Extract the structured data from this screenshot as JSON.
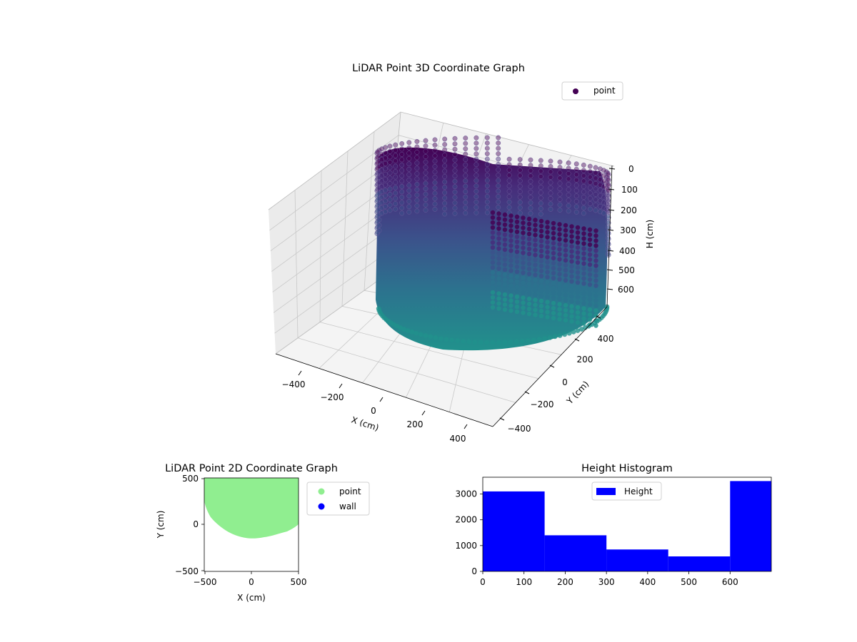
{
  "chart_data": [
    {
      "type": "scatter",
      "projection": "3d",
      "title": "LiDAR Point 3D Coordinate Graph",
      "xlabel": "X (cm)",
      "ylabel": "Y (cm)",
      "zlabel": "H (cm)",
      "xticks": [
        "−400",
        "−200",
        "0",
        "200",
        "400"
      ],
      "yticks": [
        "−400",
        "−200",
        "0",
        "200",
        "400"
      ],
      "zticks": [
        "0",
        "100",
        "200",
        "300",
        "400",
        "500",
        "600"
      ],
      "xlim": [
        -500,
        500
      ],
      "ylim": [
        -500,
        500
      ],
      "zlim": [
        0,
        700
      ],
      "zaxis_inverted": true,
      "colormap": "viridis",
      "legend": {
        "position": "top-right",
        "entries": [
          "point"
        ]
      },
      "series": [
        {
          "name": "point",
          "shape": "cylindrical wall of points",
          "radius_cm": 500,
          "height_range": [
            0,
            700
          ]
        }
      ],
      "grid": true
    },
    {
      "type": "scatter",
      "title": "LiDAR Point 2D Coordinate Graph",
      "xlabel": "X (cm)",
      "ylabel": "Y (cm)",
      "xticks": [
        "−500",
        "0",
        "500"
      ],
      "yticks": [
        "−500",
        "0",
        "500"
      ],
      "xlim": [
        -500,
        500
      ],
      "ylim": [
        -500,
        500
      ],
      "legend": {
        "position": "outside-right",
        "entries": [
          "point",
          "wall"
        ]
      },
      "series": [
        {
          "name": "point",
          "color": "#90ee90"
        },
        {
          "name": "wall",
          "color": "#0000ff"
        }
      ],
      "grid": false
    },
    {
      "type": "bar",
      "title": "Height Histogram",
      "xlabel": "",
      "ylabel": "",
      "xticks": [
        "0",
        "100",
        "200",
        "300",
        "400",
        "500",
        "600"
      ],
      "yticks": [
        "0",
        "1000",
        "2000",
        "3000"
      ],
      "xlim": [
        0,
        700
      ],
      "ylim": [
        0,
        3650
      ],
      "bins": [
        [
          0,
          150
        ],
        [
          150,
          300
        ],
        [
          300,
          450
        ],
        [
          450,
          600
        ],
        [
          600,
          700
        ]
      ],
      "values": [
        3100,
        1400,
        850,
        580,
        3500
      ],
      "legend": {
        "position": "top-center",
        "entries": [
          "Height"
        ]
      },
      "series": [
        {
          "name": "Height",
          "color": "#0000ff"
        }
      ],
      "grid": false
    }
  ]
}
